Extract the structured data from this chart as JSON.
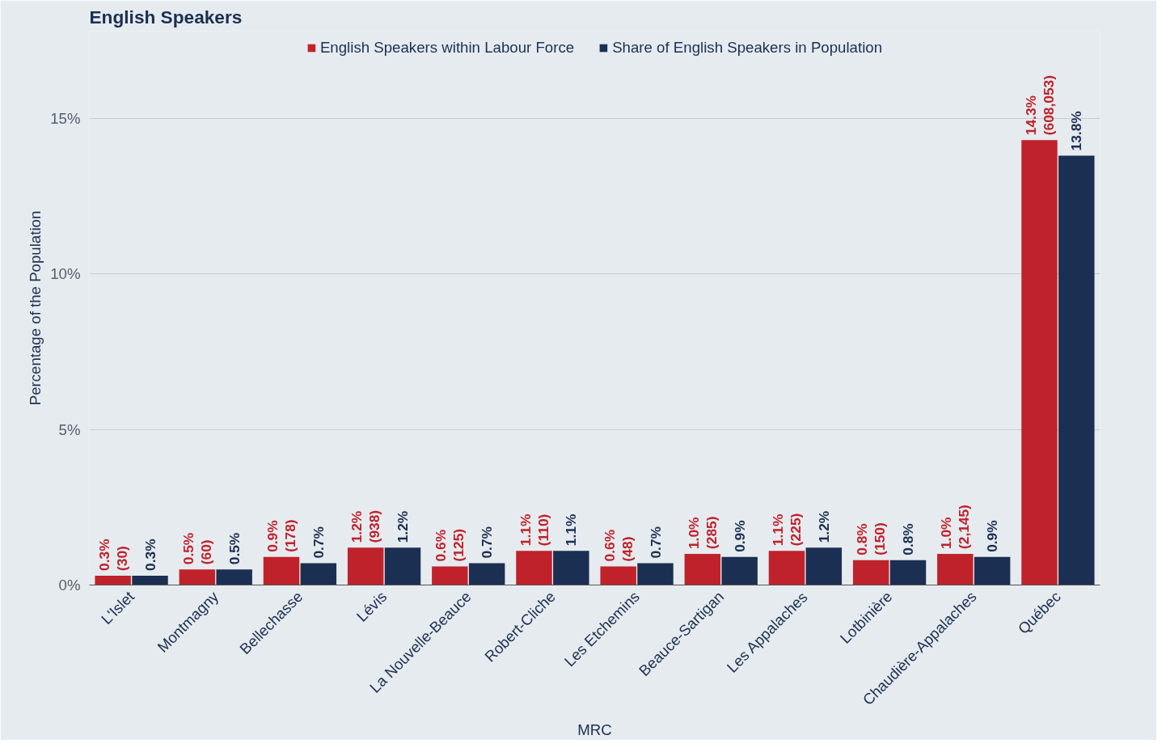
{
  "chart_data": {
    "type": "bar",
    "title": "English Speakers",
    "xlabel": "MRC",
    "ylabel": "Percentage of the Population",
    "categories": [
      "L'Islet",
      "Montmagny",
      "Bellechasse",
      "Lévis",
      "La Nouvelle-Beauce",
      "Robert-Cliche",
      "Les Etchemins",
      "Beauce-Sartigan",
      "Les Appalaches",
      "Lotbinière",
      "Chaudière-Appalaches",
      "Québec"
    ],
    "series": [
      {
        "name": "English Speakers within Labour Force",
        "color": "#c0222b",
        "values": [
          0.3,
          0.5,
          0.9,
          1.2,
          0.6,
          1.1,
          0.6,
          1.0,
          1.1,
          0.8,
          1.0,
          14.3
        ],
        "value_labels": [
          "0.3%\n(30)",
          "0.5%\n(60)",
          "0.9%\n(178)",
          "1.2%\n(938)",
          "0.6%\n(125)",
          "1.1%\n(110)",
          "0.6%\n(48)",
          "1.0%\n(285)",
          "1.1%\n(225)",
          "0.8%\n(150)",
          "1.0%\n(2,145)",
          "14.3%\n(608,053)"
        ]
      },
      {
        "name": "Share of English Speakers in Population",
        "color": "#1b2f52",
        "values": [
          0.3,
          0.5,
          0.7,
          1.2,
          0.7,
          1.1,
          0.7,
          0.9,
          1.2,
          0.8,
          0.9,
          13.8
        ],
        "value_labels": [
          "0.3%",
          "0.5%",
          "0.7%",
          "1.2%",
          "0.7%",
          "1.1%",
          "0.7%",
          "0.9%",
          "1.2%",
          "0.8%",
          "0.9%",
          "13.8%"
        ]
      }
    ],
    "ylim": [
      0,
      17.8
    ],
    "yticks": [
      {
        "value": 0,
        "label": "0%"
      },
      {
        "value": 5,
        "label": "5%"
      },
      {
        "value": 10,
        "label": "10%"
      },
      {
        "value": 15,
        "label": "15%"
      }
    ],
    "grid": "y",
    "legend": "top"
  }
}
